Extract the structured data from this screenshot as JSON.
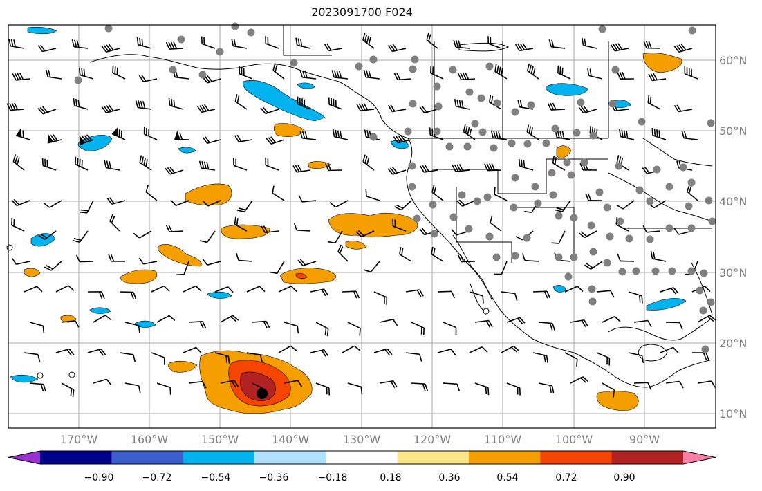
{
  "title": "2023091700 F024",
  "lon_labels": [
    "170°W",
    "160°W",
    "150°W",
    "140°W",
    "130°W",
    "120°W",
    "110°W",
    "100°W",
    "90°W"
  ],
  "lat_labels": [
    "60°N",
    "50°N",
    "40°N",
    "30°N",
    "20°N",
    "10°N"
  ],
  "colorbar": {
    "ticks": [
      "−0.90",
      "−0.72",
      "−0.54",
      "−0.36",
      "−0.18",
      "0.18",
      "0.36",
      "0.54",
      "0.72",
      "0.90"
    ],
    "colors": [
      "#9b30d0",
      "#00008b",
      "#3a5fcd",
      "#00b2ee",
      "#b0e2ff",
      "#ffffff",
      "#fbe78a",
      "#f59e00",
      "#f54500",
      "#b22222",
      "#f77fa6"
    ]
  },
  "colors": {
    "land_line": "#000000",
    "grid": "#aaaaaa",
    "station": "#808080",
    "center_marker": "#000000"
  }
}
